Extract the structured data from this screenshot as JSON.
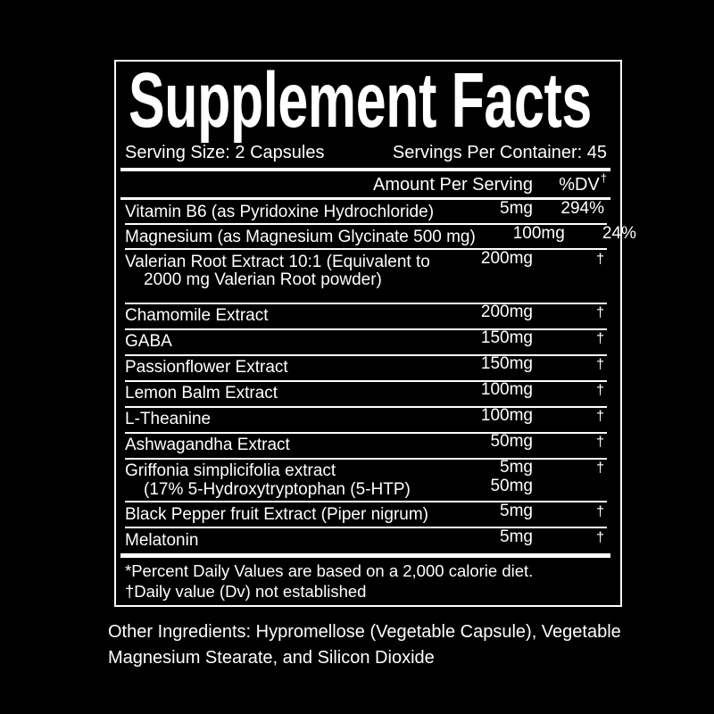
{
  "panel": {
    "title": "Supplement Facts",
    "serving_size": "Serving Size: 2 Capsules",
    "servings_per_container": "Servings Per Container: 45",
    "columns": {
      "amount": "Amount Per Serving",
      "dv": "%DV",
      "dv_footnote_mark": "†"
    },
    "rows": [
      {
        "name_lines": [
          "Vitamin B6 (as Pyridoxine Hydrochloride)"
        ],
        "amount_lines": [
          "5mg"
        ],
        "dv": "294%"
      },
      {
        "name_lines": [
          "Magnesium (as Magnesium Glycinate 500 mg)"
        ],
        "amount_lines": [
          "100mg"
        ],
        "dv": "24%"
      },
      {
        "name_lines": [
          "Valerian Root Extract 10:1 (Equivalent to",
          "2000 mg Valerian Root powder)"
        ],
        "amount_lines": [
          "200mg"
        ],
        "dv": "†",
        "spacer": true
      },
      {
        "name_lines": [
          "Chamomile Extract"
        ],
        "amount_lines": [
          "200mg"
        ],
        "dv": "†"
      },
      {
        "name_lines": [
          "GABA"
        ],
        "amount_lines": [
          "150mg"
        ],
        "dv": "†"
      },
      {
        "name_lines": [
          "Passionflower Extract"
        ],
        "amount_lines": [
          "150mg"
        ],
        "dv": "†"
      },
      {
        "name_lines": [
          "Lemon Balm Extract"
        ],
        "amount_lines": [
          "100mg"
        ],
        "dv": "†"
      },
      {
        "name_lines": [
          "L-Theanine"
        ],
        "amount_lines": [
          "100mg"
        ],
        "dv": "†"
      },
      {
        "name_lines": [
          "Ashwagandha Extract"
        ],
        "amount_lines": [
          "50mg"
        ],
        "dv": "†"
      },
      {
        "name_lines": [
          "Griffonia simplicifolia extract",
          "(17% 5-Hydroxytryptophan (5-HTP)"
        ],
        "amount_lines": [
          "5mg",
          "50mg"
        ],
        "dv": "†"
      },
      {
        "name_lines": [
          "Black Pepper fruit Extract (Piper nigrum)"
        ],
        "amount_lines": [
          "5mg"
        ],
        "dv": "†"
      },
      {
        "name_lines": [
          "Melatonin"
        ],
        "amount_lines": [
          "5mg"
        ],
        "dv": "†"
      }
    ],
    "footnotes": [
      "*Percent Daily Values are based on a 2,000 calorie diet.",
      "†Daily value (Dv) not established"
    ]
  },
  "other_ingredients": "Other Ingredients: Hypromellose (Vegetable Capsule), Vegetable Magnesium Stearate, and Silicon Dioxide",
  "colors": {
    "background": "#000000",
    "text": "#ffffff",
    "border": "#ffffff"
  }
}
